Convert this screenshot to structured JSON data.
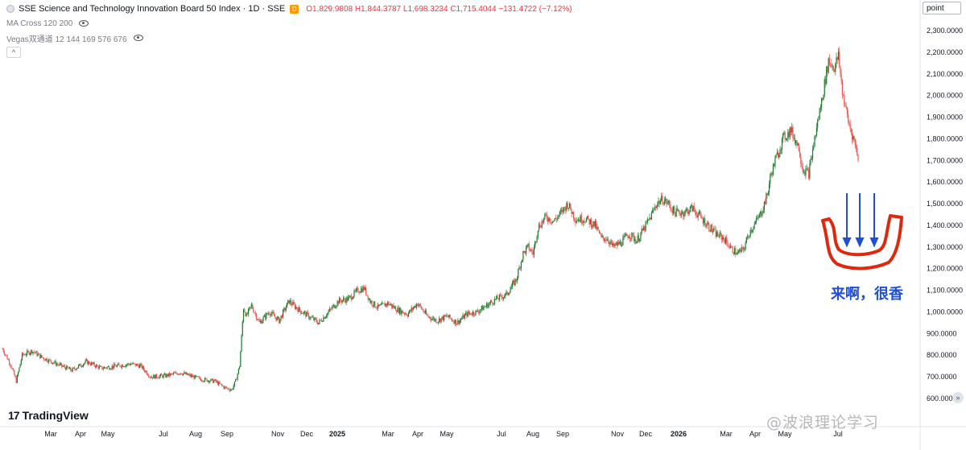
{
  "header": {
    "title": "SSE Science and Technology Innovation Board 50 Index · 1D · SSE",
    "badge": "D",
    "ohlc": "O1,829.9808 H1,844.3787 L1,698.3234 C1,715.4044 −131.4722 (−7.12%)",
    "indicator1": "MA Cross 120 200",
    "indicator2": "Vegas双通道 12 144 169 576 676",
    "collapse": "^"
  },
  "price_axis": {
    "unit": "point"
  },
  "logo": {
    "mark": "17",
    "text": "TradingView"
  },
  "annotation": {
    "text": "来啊，很香"
  },
  "watermark": {
    "text": "@波浪理论学习"
  },
  "scroll_btn": "»",
  "colors": {
    "up": "#26a69a",
    "up_dark": "#1b7a2b",
    "down": "#ef5350",
    "annotation_blue": "#1e4fd6",
    "annotation_red": "#dd2a0e"
  },
  "chart_data": {
    "type": "candlestick",
    "series": [
      {
        "name": "SSE Science and Technology Innovation Board 50 Index",
        "values": []
      }
    ],
    "y_ticks": [
      "2,300.0000",
      "2,200.0000",
      "2,100.0000",
      "2,000.0000",
      "1,900.0000",
      "1,800.0000",
      "1,700.0000",
      "1,600.0000",
      "1,500.0000",
      "1,400.0000",
      "1,300.0000",
      "1,200.0000",
      "1,100.0000",
      "1,000.0000",
      "900.0000",
      "800.0000",
      "700.0000",
      "600.0000"
    ],
    "ylim": [
      600,
      2300
    ],
    "x_ticks": [
      "Mar",
      "Apr",
      "May",
      "Jul",
      "Aug",
      "Sep",
      "Nov",
      "Dec",
      "2025",
      "Mar",
      "Apr",
      "May",
      "Jul",
      "Aug",
      "Sep",
      "Nov",
      "Dec",
      "2026",
      "Mar",
      "Apr",
      "May",
      "Jul"
    ],
    "keypoints": [
      [
        0,
        830
      ],
      [
        8,
        760
      ],
      [
        14,
        680
      ],
      [
        20,
        800
      ],
      [
        30,
        820
      ],
      [
        40,
        790
      ],
      [
        55,
        760
      ],
      [
        70,
        730
      ],
      [
        85,
        770
      ],
      [
        100,
        740
      ],
      [
        115,
        750
      ],
      [
        130,
        760
      ],
      [
        140,
        750
      ],
      [
        150,
        700
      ],
      [
        165,
        705
      ],
      [
        180,
        720
      ],
      [
        200,
        690
      ],
      [
        215,
        680
      ],
      [
        225,
        650
      ],
      [
        232,
        640
      ],
      [
        236,
        680
      ],
      [
        240,
        750
      ],
      [
        244,
        1020
      ],
      [
        247,
        980
      ],
      [
        252,
        1030
      ],
      [
        260,
        950
      ],
      [
        270,
        1000
      ],
      [
        280,
        960
      ],
      [
        290,
        1050
      ],
      [
        300,
        1010
      ],
      [
        310,
        980
      ],
      [
        320,
        950
      ],
      [
        330,
        1000
      ],
      [
        340,
        1050
      ],
      [
        350,
        1060
      ],
      [
        360,
        1100
      ],
      [
        366,
        1110
      ],
      [
        372,
        1050
      ],
      [
        380,
        1020
      ],
      [
        390,
        1040
      ],
      [
        400,
        1010
      ],
      [
        410,
        990
      ],
      [
        420,
        1040
      ],
      [
        430,
        980
      ],
      [
        440,
        960
      ],
      [
        450,
        980
      ],
      [
        460,
        950
      ],
      [
        470,
        990
      ],
      [
        480,
        1000
      ],
      [
        490,
        1030
      ],
      [
        500,
        1060
      ],
      [
        510,
        1080
      ],
      [
        520,
        1150
      ],
      [
        527,
        1270
      ],
      [
        532,
        1300
      ],
      [
        537,
        1270
      ],
      [
        542,
        1390
      ],
      [
        550,
        1440
      ],
      [
        558,
        1420
      ],
      [
        566,
        1460
      ],
      [
        572,
        1500
      ],
      [
        580,
        1430
      ],
      [
        590,
        1430
      ],
      [
        600,
        1400
      ],
      [
        606,
        1340
      ],
      [
        612,
        1340
      ],
      [
        618,
        1300
      ],
      [
        626,
        1320
      ],
      [
        634,
        1360
      ],
      [
        642,
        1330
      ],
      [
        650,
        1390
      ],
      [
        656,
        1440
      ],
      [
        662,
        1500
      ],
      [
        668,
        1520
      ],
      [
        674,
        1500
      ],
      [
        680,
        1460
      ],
      [
        690,
        1460
      ],
      [
        698,
        1480
      ],
      [
        706,
        1440
      ],
      [
        714,
        1400
      ],
      [
        722,
        1360
      ],
      [
        730,
        1340
      ],
      [
        738,
        1290
      ],
      [
        744,
        1270
      ],
      [
        750,
        1290
      ],
      [
        756,
        1370
      ],
      [
        762,
        1410
      ],
      [
        768,
        1460
      ],
      [
        774,
        1540
      ],
      [
        778,
        1640
      ],
      [
        783,
        1710
      ],
      [
        790,
        1800
      ],
      [
        798,
        1840
      ],
      [
        806,
        1760
      ],
      [
        810,
        1660
      ],
      [
        816,
        1640
      ],
      [
        822,
        1800
      ],
      [
        830,
        2000
      ],
      [
        836,
        2160
      ],
      [
        842,
        2130
      ],
      [
        846,
        2180
      ],
      [
        850,
        2020
      ],
      [
        856,
        1880
      ],
      [
        862,
        1790
      ],
      [
        866,
        1715
      ]
    ],
    "annotations": [
      "3 downward arrows",
      "bowl shape",
      "来啊，很香"
    ]
  }
}
